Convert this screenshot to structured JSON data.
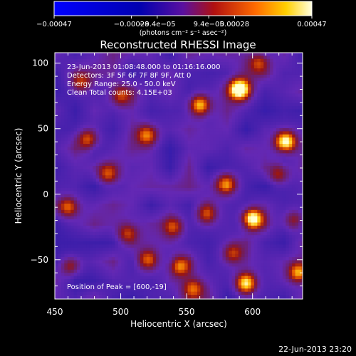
{
  "chart_data": {
    "type": "heatmap",
    "title": "Reconstructed RHESSI Image",
    "xlabel": "Heliocentric X (arcsec)",
    "ylabel": "Heliocentric Y (arcsec)",
    "xlim": [
      450,
      638
    ],
    "ylim": [
      -80,
      108
    ],
    "xticks": [
      450,
      500,
      550,
      600
    ],
    "yticks": [
      -50,
      0,
      50,
      100
    ],
    "tick_labels_x": [
      "450",
      "500",
      "550",
      "600"
    ],
    "tick_labels_y": [
      "−50",
      "0",
      "50",
      "100"
    ],
    "annotations": [
      "23-Jun-2013 01:08:48.000 to 01:16:16.000",
      "Detectors: 3F 5F 6F 7F 8F 9F, Att 0",
      "Energy Range: 25.0 - 50.0 keV",
      "Clean     Total counts: 4.15E+03"
    ],
    "peak_label": "Position of Peak = [600,-19]",
    "colorbar": {
      "tick_labels": [
        "−0.00047",
        "−0.00028",
        "−9.4e−05",
        "9.4e−05",
        "0.00028",
        "0.00047"
      ],
      "unit_label": "(photons cm⁻² s⁻¹ asec⁻²)",
      "min": -0.00047,
      "max": 0.00047
    },
    "hot_spots": [
      {
        "x": 590,
        "y": 80,
        "strength": 1.0
      },
      {
        "x": 625,
        "y": 40,
        "strength": 0.95
      },
      {
        "x": 600,
        "y": -19,
        "strength": 1.0
      },
      {
        "x": 595,
        "y": -68,
        "strength": 0.85
      },
      {
        "x": 635,
        "y": -60,
        "strength": 0.7
      },
      {
        "x": 560,
        "y": 68,
        "strength": 0.75
      },
      {
        "x": 520,
        "y": 45,
        "strength": 0.6
      },
      {
        "x": 475,
        "y": 42,
        "strength": 0.55
      },
      {
        "x": 470,
        "y": 85,
        "strength": 0.45
      },
      {
        "x": 490,
        "y": 15,
        "strength": 0.5
      },
      {
        "x": 460,
        "y": -10,
        "strength": 0.55
      },
      {
        "x": 505,
        "y": -30,
        "strength": 0.45
      },
      {
        "x": 565,
        "y": -15,
        "strength": 0.5
      },
      {
        "x": 540,
        "y": -25,
        "strength": 0.45
      },
      {
        "x": 580,
        "y": 8,
        "strength": 0.55
      },
      {
        "x": 545,
        "y": -55,
        "strength": 0.6
      },
      {
        "x": 520,
        "y": -50,
        "strength": 0.5
      },
      {
        "x": 462,
        "y": -55,
        "strength": 0.45
      },
      {
        "x": 605,
        "y": 100,
        "strength": 0.45
      },
      {
        "x": 620,
        "y": 15,
        "strength": 0.45
      },
      {
        "x": 555,
        "y": -72,
        "strength": 0.5
      },
      {
        "x": 500,
        "y": 75,
        "strength": 0.45
      },
      {
        "x": 632,
        "y": -20,
        "strength": 0.45
      },
      {
        "x": 585,
        "y": -45,
        "strength": 0.45
      }
    ]
  },
  "footer": {
    "timestamp": "22-Jun-2013 23:20"
  }
}
